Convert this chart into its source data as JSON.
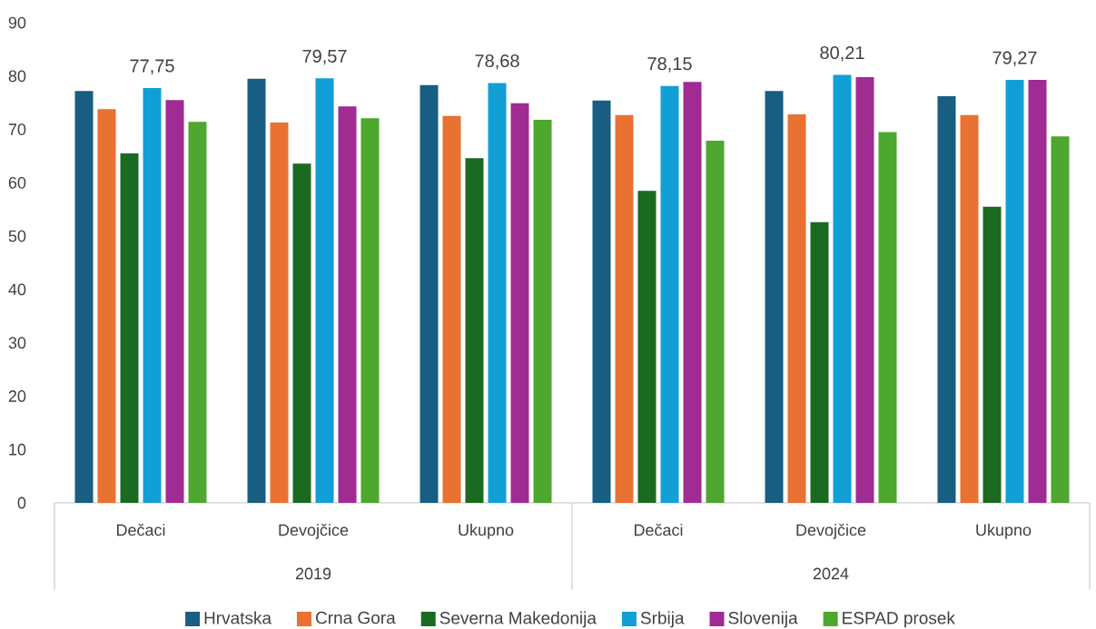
{
  "chart_data": {
    "type": "bar",
    "categories": [
      "Dečaci",
      "Devojčice",
      "Ukupno",
      "Dečaci",
      "Devojčice",
      "Ukupno"
    ],
    "series": [
      {
        "name": "Hrvatska",
        "color": "#175e82",
        "values": [
          77.2,
          79.5,
          78.3,
          75.4,
          77.2,
          76.2
        ]
      },
      {
        "name": "Crna Gora",
        "color": "#e97132",
        "values": [
          73.8,
          71.3,
          72.5,
          72.7,
          72.8,
          72.7
        ]
      },
      {
        "name": "Severna Makedonija",
        "color": "#1b6a22",
        "values": [
          65.5,
          63.6,
          64.6,
          58.5,
          52.6,
          55.5
        ]
      },
      {
        "name": "Srbija",
        "color": "#119fd6",
        "values": [
          77.75,
          79.57,
          78.68,
          78.15,
          80.21,
          79.27
        ],
        "value_labels": [
          "77,75",
          "79,57",
          "78,68",
          "78,15",
          "80,21",
          "79,27"
        ]
      },
      {
        "name": "Slovenija",
        "color": "#a02b93",
        "values": [
          75.5,
          74.3,
          74.9,
          78.9,
          79.8,
          79.3
        ]
      },
      {
        "name": "ESPAD prosek",
        "color": "#4ea72e",
        "values": [
          71.4,
          72.1,
          71.8,
          67.9,
          69.5,
          68.7
        ]
      }
    ],
    "annotations": [
      "2019",
      "2024"
    ],
    "ylim": [
      0,
      90
    ],
    "yticks": [
      0,
      10,
      20,
      30,
      40,
      50,
      60,
      70,
      80,
      90
    ],
    "grid": false,
    "legend": "bottom"
  }
}
